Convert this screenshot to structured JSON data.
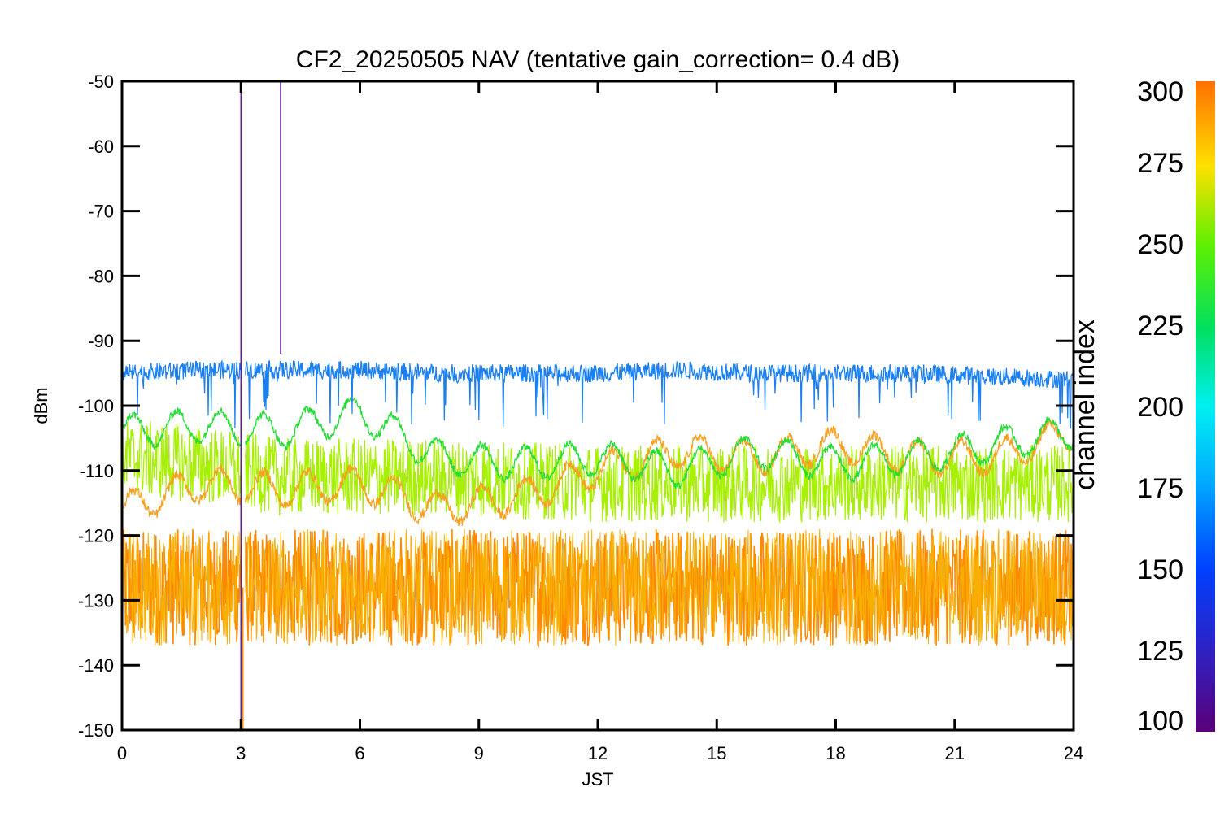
{
  "chart_data": {
    "type": "line",
    "title": "CF2_20250505 NAV (tentative gain_correction=  0.4 dB)",
    "xlabel": "JST",
    "ylabel": "dBm",
    "xlim": [
      0,
      24
    ],
    "ylim": [
      -150,
      -50
    ],
    "x_ticks": [
      "0",
      "3",
      "6",
      "9",
      "12",
      "15",
      "18",
      "21",
      "24"
    ],
    "y_ticks": [
      "-50",
      "-60",
      "-70",
      "-80",
      "-90",
      "-100",
      "-110",
      "-120",
      "-130",
      "-140",
      "-150"
    ],
    "grid": false,
    "colorbar": {
      "label": "channel index",
      "range": [
        100,
        300
      ],
      "ticks": [
        "300",
        "275",
        "250",
        "225",
        "200",
        "175",
        "150",
        "125",
        "100"
      ],
      "colormap": "rainbow"
    },
    "series": [
      {
        "channel": 150,
        "color": "#1a7ff0",
        "values_approx": [
          -95,
          -94.5,
          -94.5,
          -94.5,
          -95,
          -95,
          -95,
          -94.5,
          -95,
          -95,
          -95,
          -95.5,
          -96
        ]
      },
      {
        "channel": 245,
        "color": "#22dd33",
        "values_approx": [
          -104,
          -103,
          -104,
          -101,
          -108,
          -109,
          -108,
          -110,
          -107,
          -109,
          -108,
          -106,
          -104
        ]
      },
      {
        "channel": 258,
        "color": "#a6f000",
        "values_approx": [
          -108,
          -109,
          -111,
          -111,
          -111,
          -111.5,
          -112,
          -112,
          -112,
          -112,
          -112,
          -112,
          -112
        ]
      },
      {
        "channel": 290,
        "color": "#f5a020",
        "values_approx": [
          -116,
          -112,
          -113,
          -112,
          -116,
          -114,
          -110,
          -107,
          -108,
          -106,
          -108,
          -108,
          -104
        ]
      },
      {
        "channel": 300,
        "color": "#ff8800",
        "values_approx": [
          -128,
          -128,
          -128,
          -128,
          -128,
          -128,
          -128,
          -128,
          -128,
          -128,
          -128,
          -128,
          -128
        ]
      }
    ],
    "spikes": [
      {
        "x": 3.0,
        "color": "#6a1aa0",
        "y_top": -50,
        "y_bottom": -150
      },
      {
        "x": 4.0,
        "color": "#6a1aa0",
        "y_top": -50,
        "y_bottom": -92
      },
      {
        "x": 3.05,
        "color": "#ff8800",
        "y_top": -128,
        "y_bottom": -150
      }
    ]
  }
}
